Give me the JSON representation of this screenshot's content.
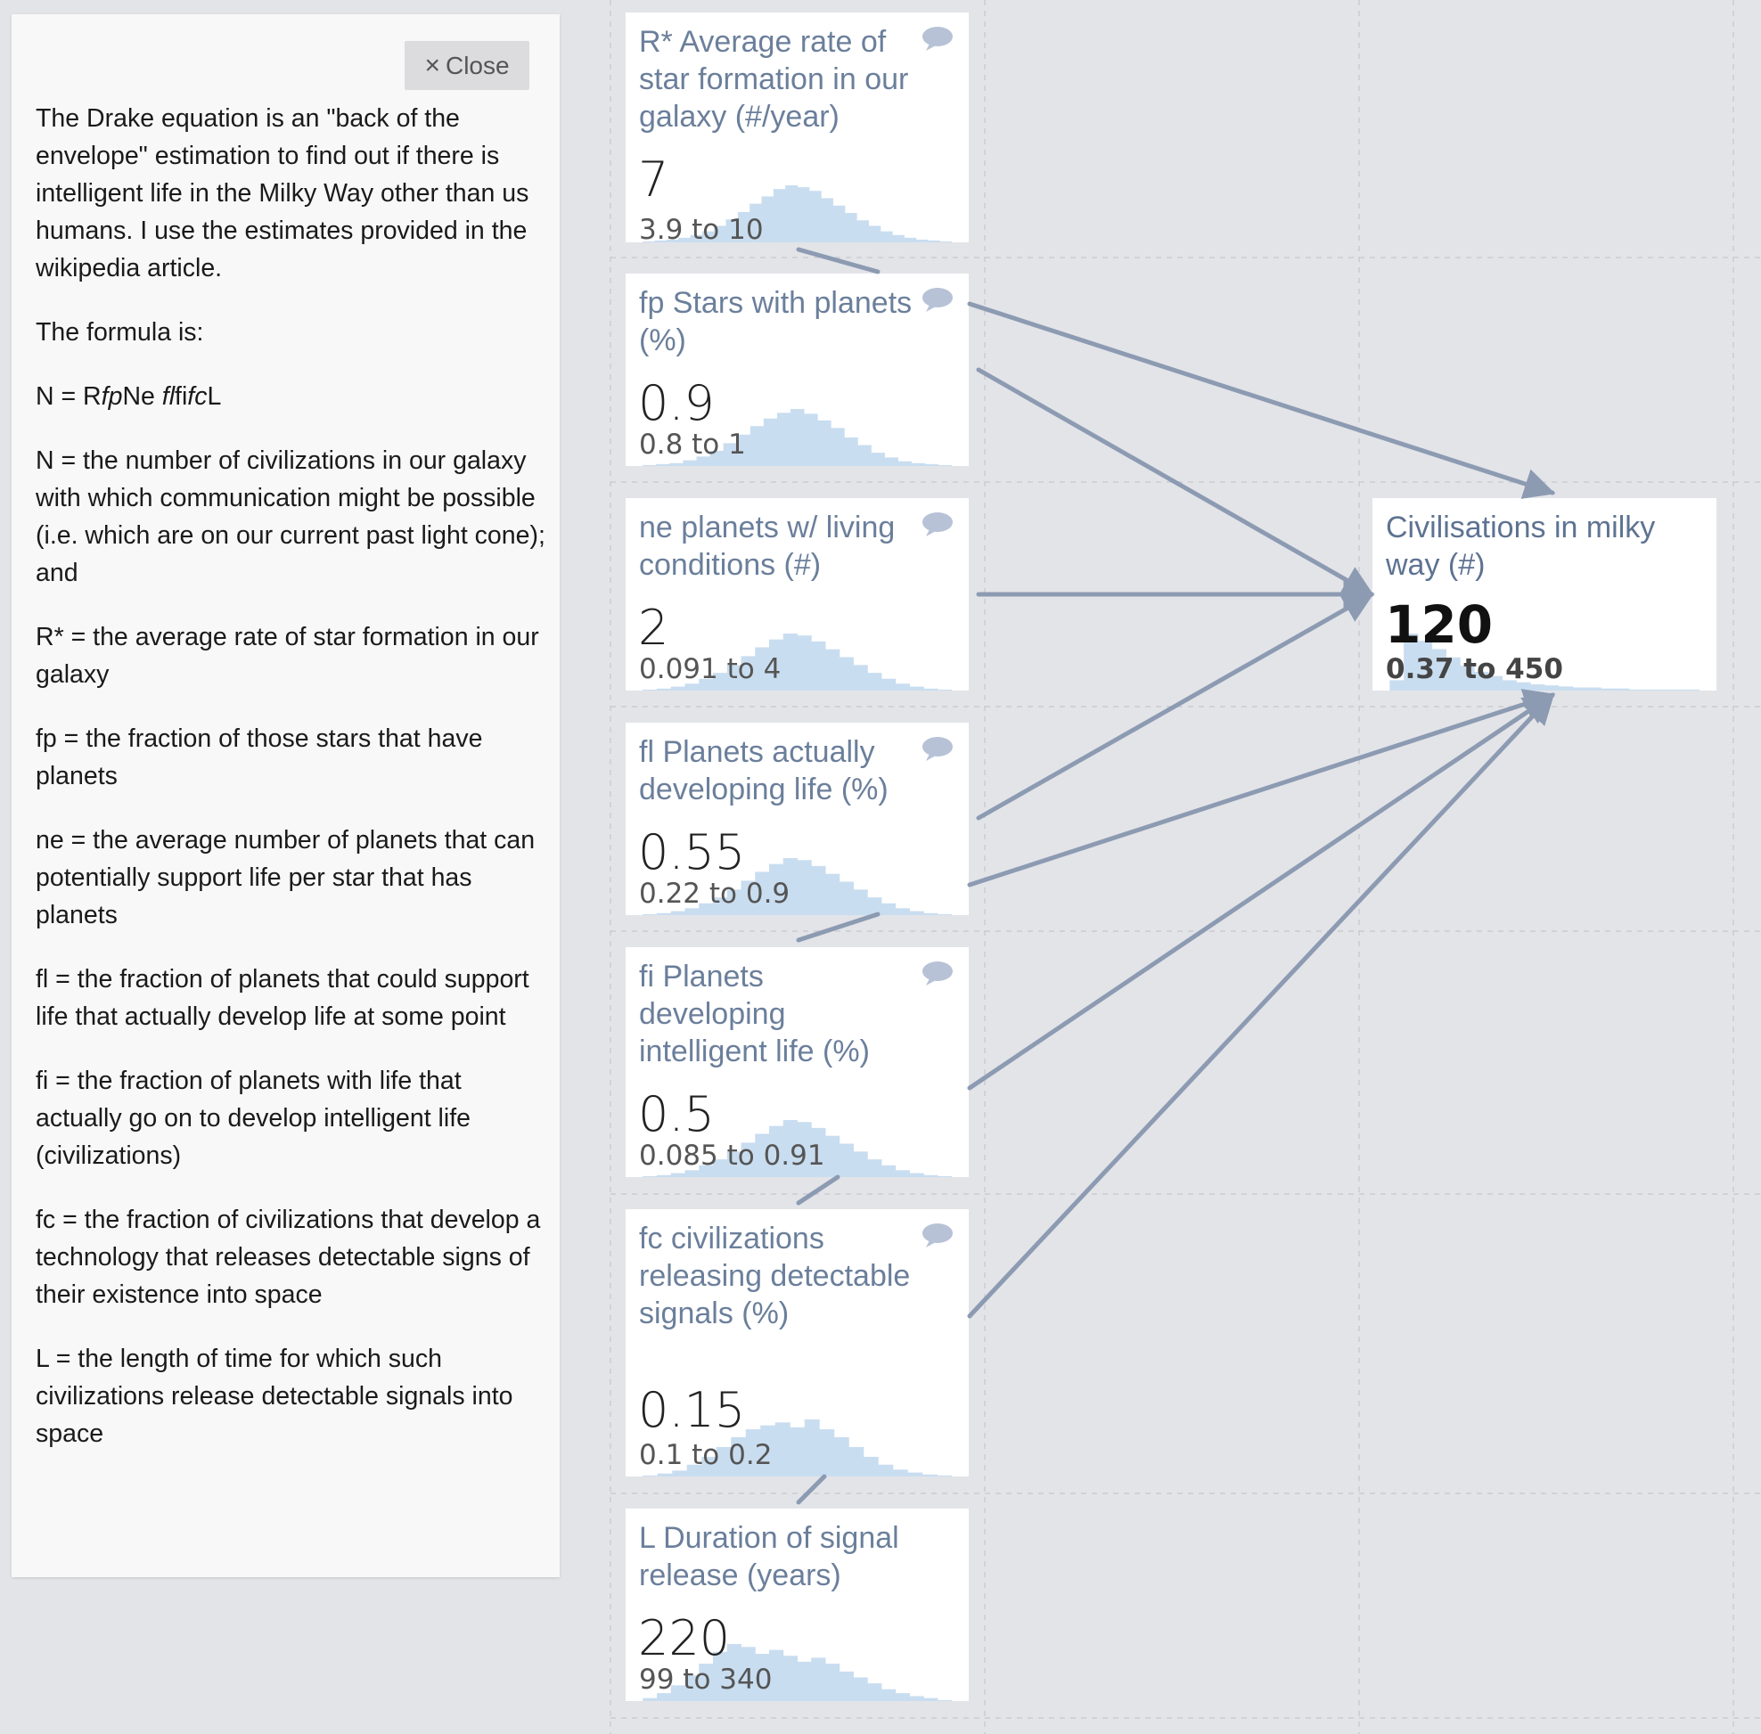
{
  "panel": {
    "close_label": "Close",
    "intro": "The Drake equation is an \"back of the envelope\" estimation to find out if there is intelligent life in the Milky Way other than us humans. I use the estimates provided in the wikipedia article.",
    "formula_heading": "The formula is:",
    "formula_prefix": "N = R",
    "formula_fp": "fp",
    "formula_ne": "Ne ",
    "formula_fl": "fl",
    "formula_fi": "fi",
    "formula_fc": "fc",
    "formula_L": "L",
    "def_N": "N = the number of civilizations in our galaxy with which communication might be possible (i.e. which are on our current past light cone); and",
    "def_R": "R* = the average rate of star formation in our galaxy",
    "def_fp": "fp = the fraction of those stars that have planets",
    "def_ne": "ne = the average number of planets that can potentially support life per star that has planets",
    "def_fl": "fl = the fraction of planets that could support life that actually develop life at some point",
    "def_fi": "fi = the fraction of planets with life that actually go on to develop intelligent life (civilizations)",
    "def_fc": "fc = the fraction of civilizations that develop a technology that releases detectable signs of their existence into space",
    "def_L": "L = the length of time for which such civilizations release detectable signals into space"
  },
  "cards": {
    "r": {
      "title": "R* Average rate of star formation in our galaxy (#/year)",
      "mean": "7",
      "range": "3.9 to 10",
      "dist": [
        1,
        2,
        3,
        5,
        8,
        12,
        18,
        25,
        33,
        42,
        50,
        58,
        62,
        60,
        56,
        48,
        40,
        32,
        24,
        18,
        12,
        8,
        5,
        3,
        2,
        1
      ]
    },
    "fp": {
      "title": "fp Stars with planets (%)",
      "mean": "0.9",
      "range": "0.8 to 1",
      "dist": [
        1,
        2,
        3,
        6,
        10,
        16,
        24,
        33,
        42,
        50,
        56,
        60,
        55,
        48,
        40,
        30,
        22,
        14,
        9,
        5,
        3,
        2,
        1
      ]
    },
    "ne": {
      "title": "ne planets w/ living conditions (#)",
      "mean": "2",
      "range": "0.091 to 4",
      "dist": [
        1,
        2,
        4,
        7,
        12,
        18,
        26,
        35,
        44,
        52,
        58,
        56,
        50,
        42,
        34,
        26,
        18,
        12,
        7,
        4,
        2,
        1
      ]
    },
    "fl": {
      "title": "fl Planets actually developing life (%)",
      "mean": "0.55",
      "range": "0.22 to 0.9",
      "dist": [
        1,
        2,
        4,
        7,
        12,
        18,
        26,
        35,
        44,
        52,
        58,
        56,
        50,
        42,
        34,
        26,
        18,
        12,
        7,
        4,
        2,
        1
      ]
    },
    "fi": {
      "title": "fi Planets developing intelligent life (%)",
      "mean": "0.5",
      "range": "0.085 to 0.91",
      "dist": [
        1,
        2,
        4,
        7,
        12,
        18,
        26,
        35,
        44,
        52,
        58,
        56,
        50,
        42,
        34,
        26,
        18,
        12,
        7,
        4,
        2,
        1
      ]
    },
    "fc": {
      "title": "fc civilizations releasing detectable signals (%)",
      "mean": "0.15",
      "range": "0.1 to 0.2",
      "dist": [
        1,
        3,
        6,
        12,
        20,
        30,
        40,
        48,
        52,
        55,
        50,
        58,
        48,
        40,
        30,
        20,
        12,
        7,
        4,
        2,
        1
      ]
    },
    "L": {
      "title": "L Duration of signal release (years)",
      "mean": "220",
      "range": "99 to 340",
      "dist": [
        3,
        8,
        16,
        26,
        38,
        50,
        58,
        55,
        48,
        52,
        46,
        40,
        44,
        38,
        30,
        24,
        18,
        12,
        8,
        5,
        3,
        1
      ]
    },
    "N": {
      "title": "Civilisations in milky way (#)",
      "mean": "120",
      "range": "0.37 to 450",
      "dist": [
        10,
        55,
        48,
        40,
        32,
        24,
        18,
        14,
        10,
        8,
        6,
        5,
        4,
        3,
        3,
        2,
        2,
        1,
        1,
        1,
        1,
        1
      ]
    }
  }
}
